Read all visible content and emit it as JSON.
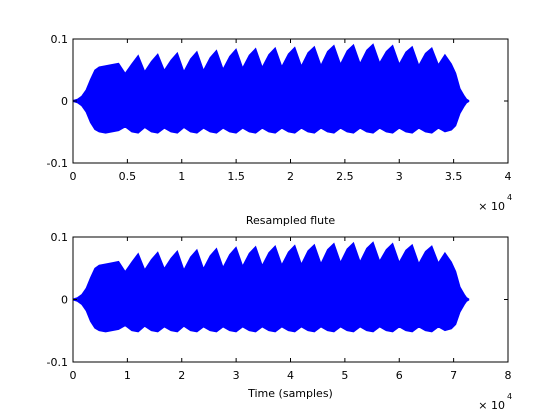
{
  "chart_data": [
    {
      "type": "line",
      "title": "",
      "xlabel": "",
      "ylabel": "",
      "xlim": [
        0,
        40000
      ],
      "ylim": [
        -0.1,
        0.1
      ],
      "xticks": [
        0,
        5000,
        10000,
        15000,
        20000,
        25000,
        30000,
        35000,
        40000
      ],
      "xtick_labels": [
        "0",
        "0.5",
        "1",
        "1.5",
        "2",
        "2.5",
        "3",
        "3.5",
        "4"
      ],
      "yticks": [
        -0.1,
        0,
        0.1
      ],
      "ytick_labels": [
        "-0.1",
        "0",
        "0.1"
      ],
      "x_exponent": {
        "base": "× 10",
        "power": "4"
      },
      "grid": false,
      "color": "#0000ff",
      "series": [
        {
          "x": [
            0,
            400,
            800,
            1200,
            1600,
            2000,
            2400,
            3000,
            3600,
            4200,
            4800,
            5400,
            6000,
            6600,
            7200,
            7800,
            8400,
            9000,
            9600,
            10200,
            10800,
            11400,
            12000,
            12600,
            13200,
            13800,
            14400,
            15000,
            15600,
            16200,
            16800,
            17400,
            18000,
            18600,
            19200,
            19800,
            20400,
            21000,
            21600,
            22200,
            22800,
            23400,
            24000,
            24600,
            25200,
            25800,
            26400,
            27000,
            27600,
            28200,
            28800,
            29400,
            30000,
            30600,
            31200,
            31800,
            32400,
            33000,
            33600,
            34200,
            34800,
            35200,
            35600,
            36000,
            36200,
            36400
          ],
          "upper": [
            0.001,
            0.003,
            0.008,
            0.018,
            0.035,
            0.05,
            0.055,
            0.057,
            0.059,
            0.061,
            0.045,
            0.06,
            0.074,
            0.048,
            0.064,
            0.076,
            0.05,
            0.066,
            0.078,
            0.048,
            0.068,
            0.08,
            0.05,
            0.07,
            0.082,
            0.052,
            0.072,
            0.084,
            0.054,
            0.074,
            0.085,
            0.055,
            0.075,
            0.086,
            0.056,
            0.076,
            0.087,
            0.057,
            0.078,
            0.088,
            0.058,
            0.08,
            0.09,
            0.06,
            0.081,
            0.091,
            0.061,
            0.082,
            0.092,
            0.062,
            0.08,
            0.09,
            0.06,
            0.079,
            0.088,
            0.058,
            0.077,
            0.086,
            0.059,
            0.075,
            0.06,
            0.045,
            0.02,
            0.008,
            0.003,
            0.001
          ],
          "lower": [
            -0.001,
            -0.003,
            -0.008,
            -0.018,
            -0.035,
            -0.046,
            -0.05,
            -0.052,
            -0.05,
            -0.048,
            -0.042,
            -0.05,
            -0.052,
            -0.043,
            -0.05,
            -0.052,
            -0.044,
            -0.05,
            -0.052,
            -0.043,
            -0.05,
            -0.052,
            -0.044,
            -0.05,
            -0.052,
            -0.044,
            -0.05,
            -0.052,
            -0.044,
            -0.05,
            -0.052,
            -0.044,
            -0.05,
            -0.052,
            -0.044,
            -0.05,
            -0.052,
            -0.044,
            -0.05,
            -0.052,
            -0.044,
            -0.05,
            -0.052,
            -0.044,
            -0.05,
            -0.052,
            -0.044,
            -0.05,
            -0.052,
            -0.044,
            -0.05,
            -0.052,
            -0.044,
            -0.05,
            -0.052,
            -0.044,
            -0.05,
            -0.052,
            -0.044,
            -0.05,
            -0.047,
            -0.04,
            -0.02,
            -0.008,
            -0.003,
            -0.001
          ]
        }
      ]
    },
    {
      "type": "line",
      "title": "Resampled flute",
      "xlabel": "Time (samples)",
      "ylabel": "",
      "xlim": [
        0,
        80000
      ],
      "ylim": [
        -0.1,
        0.1
      ],
      "xticks": [
        0,
        10000,
        20000,
        30000,
        40000,
        50000,
        60000,
        70000,
        80000
      ],
      "xtick_labels": [
        "0",
        "1",
        "2",
        "3",
        "4",
        "5",
        "6",
        "7",
        "8"
      ],
      "yticks": [
        -0.1,
        0,
        0.1
      ],
      "ytick_labels": [
        "-0.1",
        "0",
        "0.1"
      ],
      "x_exponent": {
        "base": "× 10",
        "power": "4"
      },
      "grid": false,
      "color": "#0000ff",
      "series": [
        {
          "x": [
            0,
            800,
            1600,
            2400,
            3200,
            4000,
            4800,
            6000,
            7200,
            8400,
            9600,
            10800,
            12000,
            13200,
            14400,
            15600,
            16800,
            18000,
            19200,
            20400,
            21600,
            22800,
            24000,
            25200,
            26400,
            27600,
            28800,
            30000,
            31200,
            32400,
            33600,
            34800,
            36000,
            37200,
            38400,
            39600,
            40800,
            42000,
            43200,
            44400,
            45600,
            46800,
            48000,
            49200,
            50400,
            51600,
            52800,
            54000,
            55200,
            56400,
            57600,
            58800,
            60000,
            61200,
            62400,
            63600,
            64800,
            66000,
            67200,
            68400,
            69600,
            70400,
            71200,
            72000,
            72400,
            72800
          ],
          "upper": [
            0.001,
            0.003,
            0.008,
            0.018,
            0.035,
            0.05,
            0.055,
            0.057,
            0.059,
            0.061,
            0.045,
            0.06,
            0.074,
            0.048,
            0.064,
            0.076,
            0.05,
            0.066,
            0.078,
            0.048,
            0.068,
            0.08,
            0.05,
            0.07,
            0.082,
            0.052,
            0.072,
            0.084,
            0.054,
            0.074,
            0.085,
            0.055,
            0.075,
            0.086,
            0.056,
            0.076,
            0.087,
            0.057,
            0.078,
            0.088,
            0.058,
            0.08,
            0.09,
            0.06,
            0.081,
            0.091,
            0.061,
            0.082,
            0.092,
            0.062,
            0.08,
            0.09,
            0.06,
            0.079,
            0.088,
            0.058,
            0.077,
            0.086,
            0.059,
            0.075,
            0.06,
            0.045,
            0.02,
            0.008,
            0.003,
            0.001
          ],
          "lower": [
            -0.001,
            -0.003,
            -0.008,
            -0.018,
            -0.035,
            -0.046,
            -0.05,
            -0.052,
            -0.05,
            -0.048,
            -0.042,
            -0.05,
            -0.052,
            -0.043,
            -0.05,
            -0.052,
            -0.044,
            -0.05,
            -0.052,
            -0.043,
            -0.05,
            -0.052,
            -0.044,
            -0.05,
            -0.052,
            -0.044,
            -0.05,
            -0.052,
            -0.044,
            -0.05,
            -0.052,
            -0.044,
            -0.05,
            -0.052,
            -0.044,
            -0.05,
            -0.052,
            -0.044,
            -0.05,
            -0.052,
            -0.044,
            -0.05,
            -0.052,
            -0.044,
            -0.05,
            -0.052,
            -0.044,
            -0.05,
            -0.052,
            -0.044,
            -0.05,
            -0.052,
            -0.044,
            -0.05,
            -0.052,
            -0.044,
            -0.05,
            -0.052,
            -0.044,
            -0.05,
            -0.047,
            -0.04,
            -0.02,
            -0.008,
            -0.003,
            -0.001
          ]
        }
      ]
    }
  ]
}
